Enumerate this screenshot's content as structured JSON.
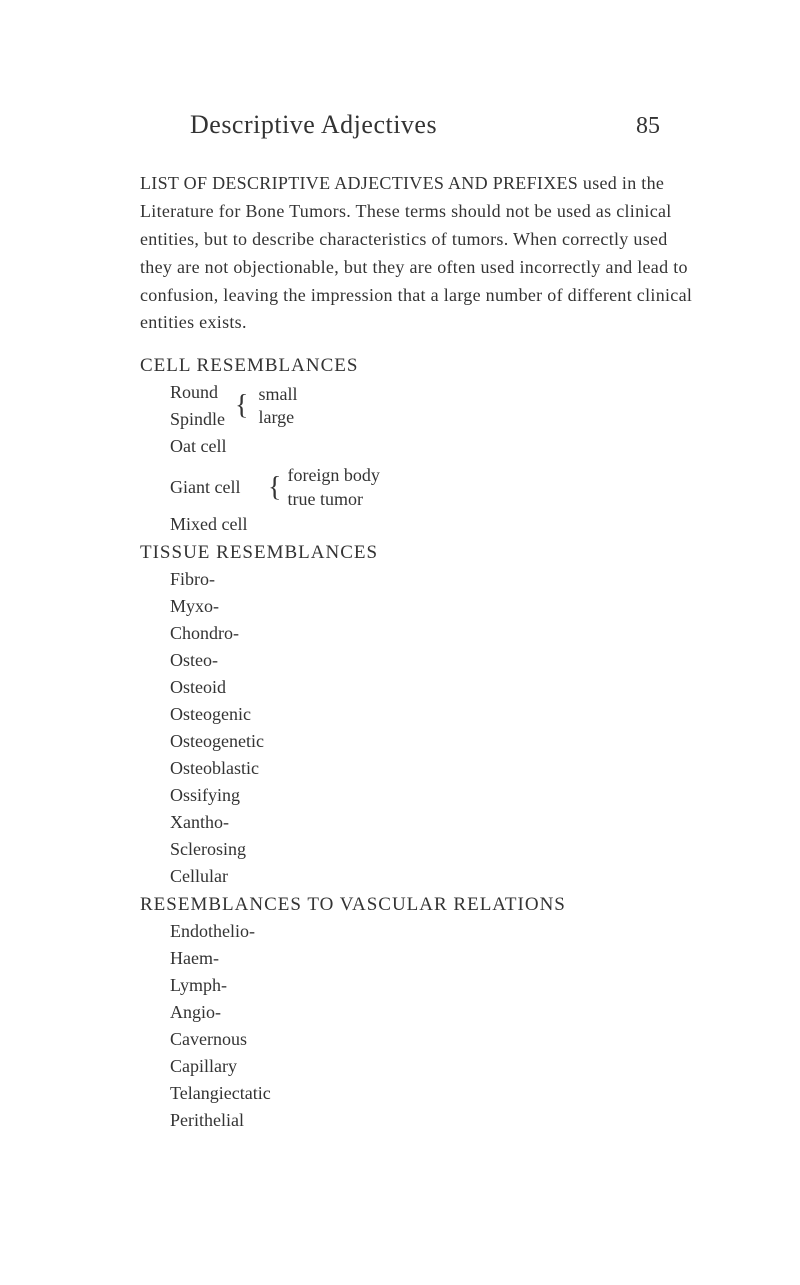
{
  "header": {
    "title": "Descriptive Adjectives",
    "page_number": "85"
  },
  "intro": "LIST OF DESCRIPTIVE ADJECTIVES AND PREFIXES used in the Literature for Bone Tumors. These terms should not be used as clinical entities, but to describe characteristics of tumors. When correctly used they are not objectionable, but they are often used incorrectly and lead to confusion, leaving the impression that a large number of different clinical entities exists.",
  "sections": {
    "cell": {
      "heading": "CELL RESEMBLANCES",
      "round_spindle": {
        "round": "Round",
        "spindle": "Spindle",
        "small": "small",
        "large": "large"
      },
      "oat": "Oat cell",
      "giant": {
        "label": "Giant cell",
        "foreign": "foreign body",
        "true": "true tumor"
      },
      "mixed": "Mixed cell"
    },
    "tissue": {
      "heading": "TISSUE RESEMBLANCES",
      "items": [
        "Fibro-",
        "Myxo-",
        "Chondro-",
        "Osteo-",
        "Osteoid",
        "Osteogenic",
        "Osteogenetic",
        "Osteoblastic",
        "Ossifying",
        "Xantho-",
        "Sclerosing",
        "Cellular"
      ]
    },
    "vascular": {
      "heading": "RESEMBLANCES TO VASCULAR RELATIONS",
      "items": [
        "Endothelio-",
        "Haem-",
        "Lymph-",
        "Angio-",
        "Cavernous",
        "Capillary",
        "Telangiectatic",
        "Perithelial"
      ]
    }
  }
}
